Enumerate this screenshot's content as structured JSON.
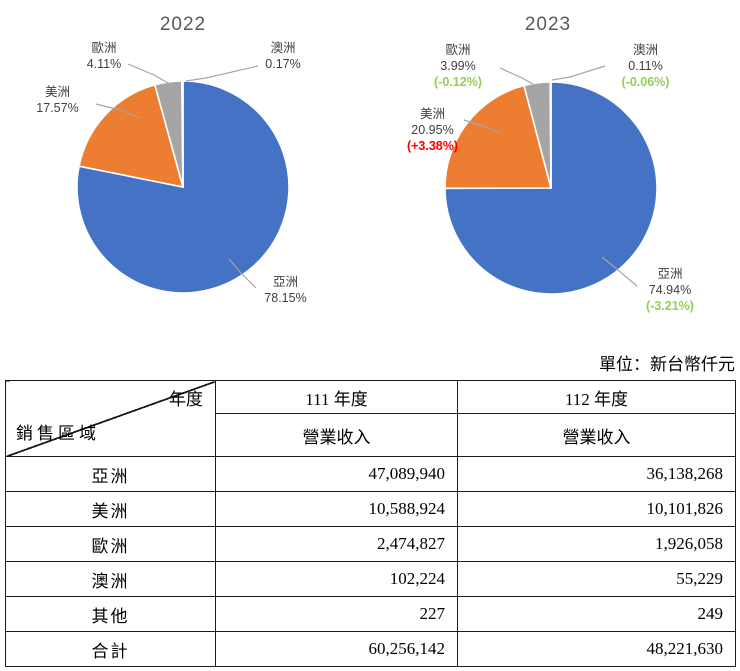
{
  "unit_note": "單位：新台幣仟元",
  "colors": {
    "increase": "#FF0000",
    "decrease": "#92D050",
    "leader": "#A6A6A6"
  },
  "chart_data": [
    {
      "type": "pie",
      "title": "2022",
      "categories": [
        "亞洲",
        "美洲",
        "歐洲",
        "澳洲"
      ],
      "values": [
        78.15,
        17.57,
        4.11,
        0.17
      ],
      "unit": "%",
      "colors": [
        "#4472C4",
        "#ED7D31",
        "#A5A5A5",
        "#FFC000"
      ],
      "legend": "none",
      "labels": {
        "asia": {
          "name": "亞洲",
          "pct": "78.15%"
        },
        "america": {
          "name": "美洲",
          "pct": "17.57%"
        },
        "europe": {
          "name": "歐洲",
          "pct": "4.11%"
        },
        "australia": {
          "name": "澳洲",
          "pct": "0.17%"
        }
      }
    },
    {
      "type": "pie",
      "title": "2023",
      "categories": [
        "亞洲",
        "美洲",
        "歐洲",
        "澳洲"
      ],
      "values": [
        74.94,
        20.95,
        3.99,
        0.11
      ],
      "unit": "%",
      "colors": [
        "#4472C4",
        "#ED7D31",
        "#A5A5A5",
        "#FFC000"
      ],
      "legend": "none",
      "labels": {
        "asia": {
          "name": "亞洲",
          "pct": "74.94%",
          "delta": "(-3.21%)",
          "trend": "down"
        },
        "america": {
          "name": "美洲",
          "pct": "20.95%",
          "delta": "(+3.38%)",
          "trend": "up"
        },
        "europe": {
          "name": "歐洲",
          "pct": "3.99%",
          "delta": "(-0.12%)",
          "trend": "down"
        },
        "australia": {
          "name": "澳洲",
          "pct": "0.11%",
          "delta": "(-0.06%)",
          "trend": "down"
        }
      }
    }
  ],
  "table": {
    "corner": {
      "top_right": "年度",
      "bottom_left": "銷售區域"
    },
    "col_headers": [
      "111 年度",
      "112 年度"
    ],
    "sub_headers": [
      "營業收入",
      "營業收入"
    ],
    "rows": [
      {
        "region": "亞洲",
        "y111": "47,089,940",
        "y112": "36,138,268"
      },
      {
        "region": "美洲",
        "y111": "10,588,924",
        "y112": "10,101,826"
      },
      {
        "region": "歐洲",
        "y111": "2,474,827",
        "y112": "1,926,058"
      },
      {
        "region": "澳洲",
        "y111": "102,224",
        "y112": "55,229"
      },
      {
        "region": "其他",
        "y111": "227",
        "y112": "249"
      },
      {
        "region": "合計",
        "y111": "60,256,142",
        "y112": "48,221,630"
      }
    ]
  }
}
